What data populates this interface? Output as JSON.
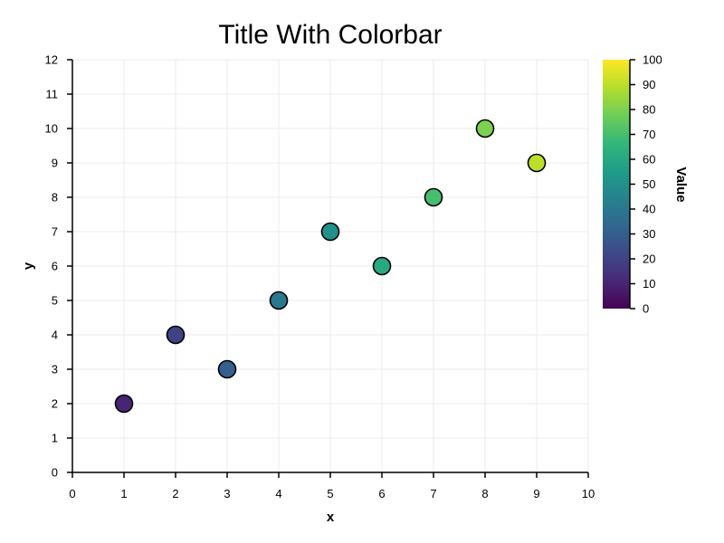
{
  "chart_data": {
    "type": "scatter",
    "title": "Title With Colorbar",
    "xlabel": "x",
    "ylabel": "y",
    "xlim": [
      0,
      10
    ],
    "ylim": [
      0,
      12
    ],
    "x_ticks": [
      0,
      1,
      2,
      3,
      4,
      5,
      6,
      7,
      8,
      9,
      10
    ],
    "y_ticks": [
      0,
      1,
      2,
      3,
      4,
      5,
      6,
      7,
      8,
      9,
      10,
      11,
      12
    ],
    "grid": true,
    "points": [
      {
        "x": 1,
        "y": 2,
        "value": 10
      },
      {
        "x": 2,
        "y": 4,
        "value": 20
      },
      {
        "x": 3,
        "y": 3,
        "value": 30
      },
      {
        "x": 4,
        "y": 5,
        "value": 40
      },
      {
        "x": 5,
        "y": 7,
        "value": 50
      },
      {
        "x": 6,
        "y": 6,
        "value": 60
      },
      {
        "x": 7,
        "y": 8,
        "value": 70
      },
      {
        "x": 8,
        "y": 10,
        "value": 80
      },
      {
        "x": 9,
        "y": 9,
        "value": 90
      }
    ],
    "colorbar": {
      "label": "Value",
      "range": [
        0,
        100
      ],
      "ticks": [
        0,
        10,
        20,
        30,
        40,
        50,
        60,
        70,
        80,
        90,
        100
      ],
      "colormap": "viridis",
      "colormap_stops": [
        "#440154",
        "#482878",
        "#3e4989",
        "#31688e",
        "#26828e",
        "#1f9e89",
        "#35b779",
        "#6ece58",
        "#b5de2b",
        "#fde725"
      ]
    },
    "colors": {
      "grid": "#ebebeb",
      "axis": "#000000",
      "marker_edge": "#000000"
    }
  }
}
